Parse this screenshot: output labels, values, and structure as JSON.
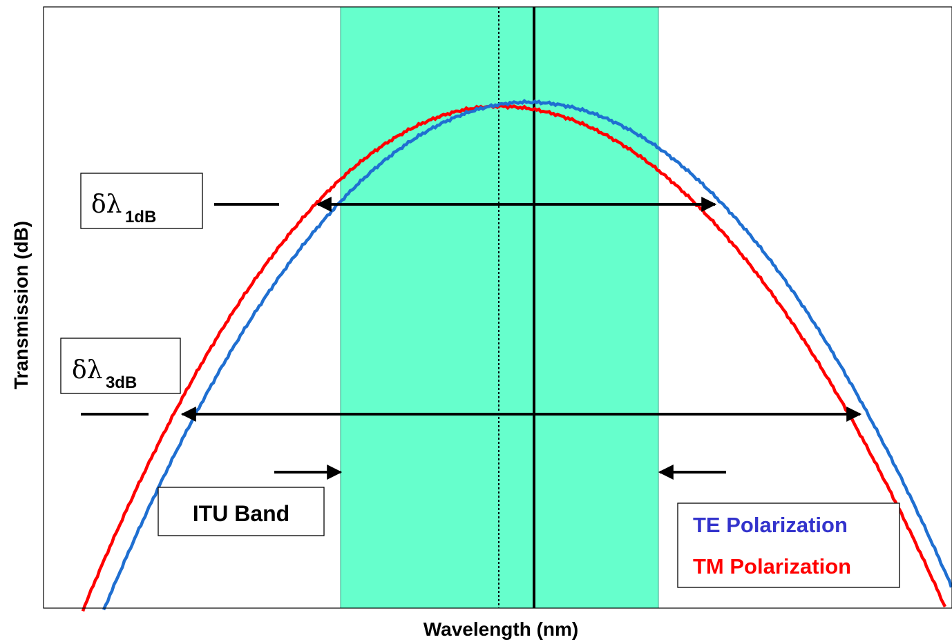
{
  "axes": {
    "xlabel": "Wavelength  (nm)",
    "ylabel": "Transmission  (dB)"
  },
  "labels": {
    "bw1_symbol": "δλ",
    "bw1_sub": "1dB",
    "bw3_symbol": "δλ",
    "bw3_sub": "3dB",
    "itu_band": "ITU Band"
  },
  "legend": {
    "te": "TE Polarization",
    "tm": "TM Polarization"
  },
  "colors": {
    "te": "#1f6fd1",
    "tm": "#ff0000",
    "band": "#66ffcc",
    "te_legend": "#3333cc",
    "tm_legend": "#ff0000"
  }
}
